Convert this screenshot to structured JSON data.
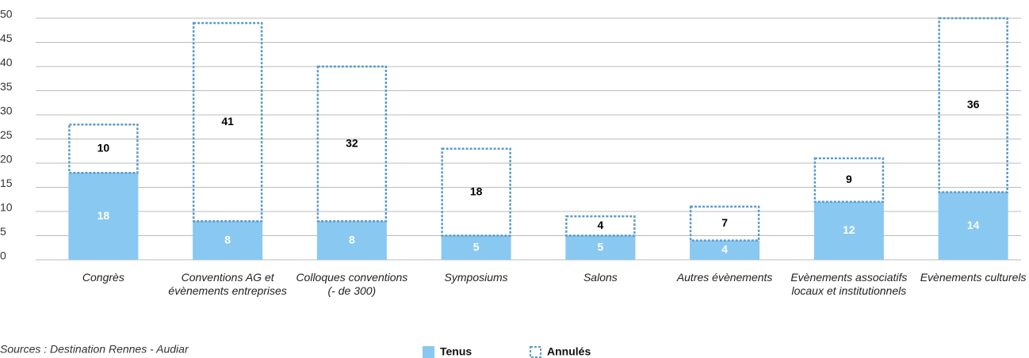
{
  "chart_data": {
    "type": "stacked-bar",
    "categories": [
      "Congrès",
      "Conventions AG et évènements entreprises",
      "Colloques conventions (- de 300)",
      "Symposiums",
      "Salons",
      "Autres évènements",
      "Evènements associatifs locaux et institutionnels",
      "Evènements culturels"
    ],
    "series": [
      {
        "name": "Tenus",
        "color": "#89c8f0",
        "style": "solid",
        "values": [
          18,
          8,
          8,
          5,
          5,
          4,
          12,
          14
        ]
      },
      {
        "name": "Annulés",
        "color": "#5b9bc9",
        "style": "dashed",
        "values": [
          10,
          41,
          32,
          18,
          4,
          7,
          9,
          36
        ]
      }
    ],
    "ylim": [
      0,
      50
    ],
    "yticks": [
      0,
      5,
      10,
      15,
      20,
      25,
      30,
      35,
      40,
      45,
      50
    ],
    "grid": true,
    "source": "Sources : Destination Rennes - Audiar"
  }
}
